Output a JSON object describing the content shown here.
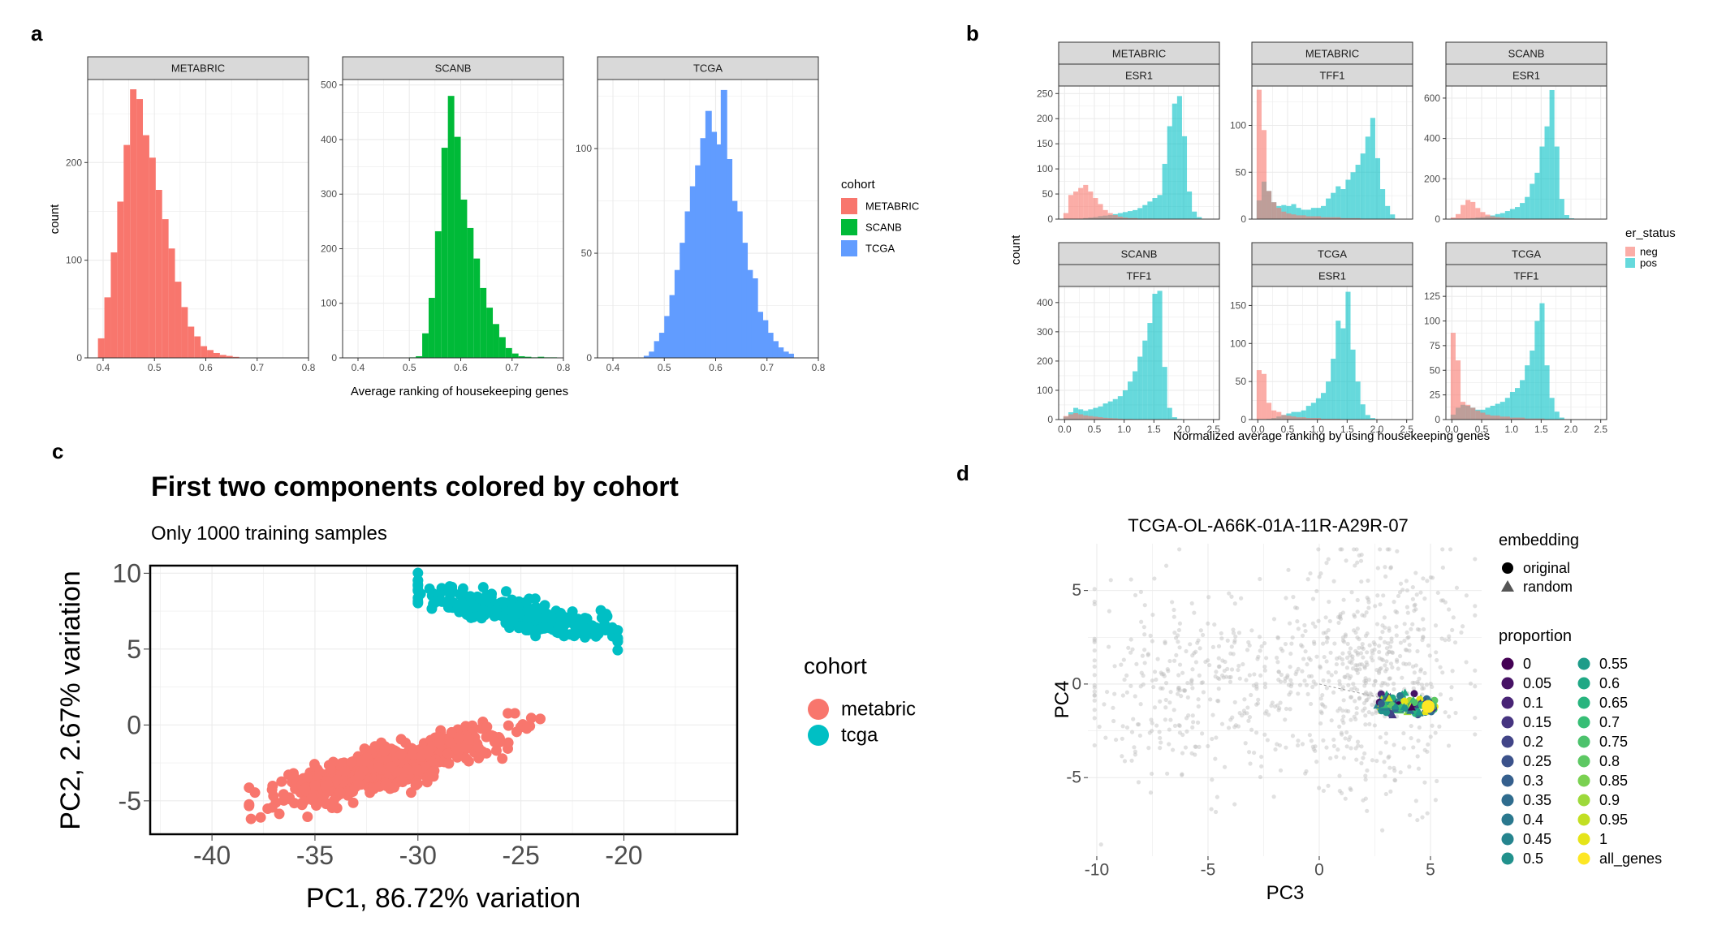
{
  "panel_labels": {
    "a": "a",
    "b": "b",
    "c": "c",
    "d": "d"
  },
  "chart_data": [
    {
      "id": "a",
      "type": "bar",
      "kind": "faceted histogram",
      "xlabel": "Average ranking of housekeeping genes",
      "ylabel": "count",
      "legend": {
        "title": "cohort",
        "position": "right",
        "entries": [
          "METABRIC",
          "SCANB",
          "TCGA"
        ]
      },
      "colors": {
        "METABRIC": "#F8766D",
        "SCANB": "#00BA38",
        "TCGA": "#619CFF"
      },
      "bin_width": 0.0125,
      "xlim": [
        0.37,
        0.8
      ],
      "xticks": [
        0.4,
        0.5,
        0.6,
        0.7,
        0.8
      ],
      "grid": true,
      "facets": [
        {
          "strip": "METABRIC",
          "cohort": "METABRIC",
          "ylim": [
            0,
            285
          ],
          "yticks": [
            0,
            100,
            200
          ],
          "bin_starts": [
            0.39,
            0.4025,
            0.415,
            0.4275,
            0.44,
            0.4525,
            0.465,
            0.4775,
            0.49,
            0.5025,
            0.515,
            0.5275,
            0.54,
            0.5525,
            0.565,
            0.5775,
            0.59,
            0.6025,
            0.615,
            0.6275,
            0.64,
            0.6525
          ],
          "counts": [
            20,
            62,
            108,
            160,
            218,
            275,
            265,
            228,
            205,
            172,
            142,
            112,
            78,
            52,
            32,
            22,
            12,
            8,
            5,
            3,
            2,
            1
          ]
        },
        {
          "strip": "SCANB",
          "cohort": "SCANB",
          "ylim": [
            0,
            510
          ],
          "yticks": [
            0,
            100,
            200,
            300,
            400,
            500
          ],
          "bin_starts": [
            0.5,
            0.5125,
            0.525,
            0.5375,
            0.55,
            0.5625,
            0.575,
            0.5875,
            0.6,
            0.6125,
            0.625,
            0.6375,
            0.65,
            0.6625,
            0.675,
            0.6875,
            0.7,
            0.7125,
            0.725,
            0.7375,
            0.75,
            0.7625,
            0.775
          ],
          "counts": [
            1,
            3,
            45,
            110,
            232,
            385,
            480,
            405,
            290,
            238,
            182,
            128,
            92,
            62,
            38,
            18,
            8,
            3,
            2,
            1,
            2,
            1,
            1
          ]
        },
        {
          "strip": "TCGA",
          "cohort": "TCGA",
          "ylim": [
            0,
            133
          ],
          "yticks": [
            0,
            50,
            100
          ],
          "bin_starts": [
            0.46,
            0.47,
            0.48,
            0.49,
            0.5,
            0.51,
            0.52,
            0.53,
            0.54,
            0.55,
            0.56,
            0.57,
            0.58,
            0.59,
            0.6,
            0.61,
            0.62,
            0.63,
            0.64,
            0.65,
            0.66,
            0.67,
            0.68,
            0.69,
            0.7,
            0.71,
            0.72,
            0.73,
            0.74
          ],
          "counts": [
            1,
            3,
            8,
            12,
            20,
            30,
            42,
            55,
            70,
            82,
            92,
            105,
            118,
            108,
            102,
            128,
            95,
            75,
            70,
            55,
            42,
            38,
            22,
            18,
            12,
            8,
            5,
            3,
            2
          ]
        }
      ]
    },
    {
      "id": "b",
      "type": "bar",
      "kind": "faceted overlapping histogram",
      "xlabel": "Normalized average ranking by using housekeeping genes",
      "ylabel": "count",
      "legend": {
        "title": "er_status",
        "position": "right",
        "entries": [
          "neg",
          "pos"
        ]
      },
      "colors": {
        "neg": "#F8766D",
        "pos": "#00BFC4"
      },
      "bin_width": 0.083,
      "xlim": [
        -0.1,
        2.6
      ],
      "xticks": [
        0,
        0.5,
        1,
        1.5,
        2,
        2.5
      ],
      "xtick_labels": [
        "0.0",
        "0.5",
        "1.0",
        "1.5",
        "2.0",
        "2.5"
      ],
      "grid": true,
      "facets": [
        {
          "strip1": "METABRIC",
          "strip2": "ESR1",
          "ylim": [
            0,
            265
          ],
          "yticks": [
            0,
            50,
            100,
            150,
            200,
            250
          ],
          "neg": [
            12,
            48,
            55,
            62,
            68,
            55,
            42,
            30,
            18,
            12,
            8,
            5,
            3,
            2,
            2,
            1,
            1,
            1,
            0,
            0,
            0,
            0,
            0,
            0,
            0,
            0,
            0,
            0
          ],
          "pos": [
            0,
            0,
            0,
            0,
            2,
            3,
            4,
            6,
            7,
            8,
            10,
            12,
            14,
            16,
            18,
            22,
            28,
            35,
            42,
            48,
            110,
            185,
            230,
            245,
            165,
            55,
            15,
            4
          ]
        },
        {
          "strip1": "METABRIC",
          "strip2": "TFF1",
          "ylim": [
            0,
            142
          ],
          "yticks": [
            0,
            50,
            100
          ],
          "neg": [
            138,
            95,
            30,
            18,
            12,
            8,
            6,
            5,
            4,
            4,
            3,
            3,
            3,
            2,
            2,
            2,
            2,
            1,
            1,
            1,
            1,
            0,
            0,
            0,
            0,
            0,
            0,
            0
          ],
          "pos": [
            20,
            40,
            30,
            18,
            14,
            15,
            14,
            16,
            12,
            10,
            10,
            12,
            12,
            14,
            22,
            28,
            35,
            32,
            42,
            50,
            58,
            70,
            88,
            108,
            65,
            32,
            14,
            5
          ]
        },
        {
          "strip1": "SCANB",
          "strip2": "ESR1",
          "ylim": [
            0,
            660
          ],
          "yticks": [
            0,
            200,
            400,
            600
          ],
          "neg": [
            8,
            25,
            70,
            95,
            85,
            55,
            35,
            22,
            14,
            10,
            7,
            5,
            4,
            3,
            2,
            2,
            1,
            1,
            0,
            0,
            0,
            0,
            0,
            0,
            0,
            0,
            0,
            0
          ],
          "pos": [
            0,
            0,
            2,
            3,
            5,
            8,
            10,
            14,
            18,
            25,
            30,
            40,
            50,
            60,
            80,
            110,
            175,
            230,
            360,
            460,
            640,
            360,
            100,
            20,
            4,
            0,
            0,
            0
          ]
        },
        {
          "strip1": "SCANB",
          "strip2": "TFF1",
          "ylim": [
            0,
            455
          ],
          "yticks": [
            0,
            100,
            200,
            300,
            400
          ],
          "neg": [
            12,
            18,
            22,
            18,
            14,
            12,
            10,
            8,
            6,
            5,
            4,
            3,
            2,
            2,
            1,
            1,
            1,
            0,
            0,
            0,
            0,
            0,
            0,
            0,
            0,
            0,
            0,
            0
          ],
          "pos": [
            10,
            25,
            40,
            35,
            30,
            35,
            40,
            45,
            55,
            62,
            70,
            80,
            100,
            130,
            165,
            215,
            270,
            330,
            430,
            440,
            180,
            40,
            8,
            2,
            0,
            0,
            0,
            0
          ]
        },
        {
          "strip1": "TCGA",
          "strip2": "ESR1",
          "ylim": [
            0,
            175
          ],
          "yticks": [
            0,
            50,
            100,
            150
          ],
          "neg": [
            65,
            60,
            22,
            12,
            10,
            6,
            5,
            4,
            3,
            3,
            2,
            2,
            2,
            1,
            1,
            1,
            1,
            0,
            0,
            0,
            0,
            0,
            0,
            0,
            0,
            0,
            0,
            0
          ],
          "pos": [
            0,
            0,
            1,
            2,
            4,
            6,
            8,
            10,
            10,
            12,
            18,
            22,
            28,
            35,
            50,
            80,
            130,
            120,
            168,
            92,
            50,
            20,
            6,
            2,
            0,
            0,
            0,
            0
          ]
        },
        {
          "strip1": "TCGA",
          "strip2": "TFF1",
          "ylim": [
            0,
            135
          ],
          "yticks": [
            0,
            25,
            50,
            75,
            100,
            125
          ],
          "neg": [
            88,
            60,
            18,
            15,
            12,
            9,
            7,
            5,
            4,
            4,
            3,
            3,
            2,
            2,
            2,
            1,
            1,
            1,
            1,
            0,
            0,
            0,
            0,
            0,
            0,
            0,
            0,
            0
          ],
          "pos": [
            5,
            12,
            15,
            14,
            12,
            10,
            10,
            12,
            14,
            16,
            18,
            22,
            28,
            32,
            40,
            55,
            70,
            100,
            118,
            55,
            22,
            8,
            2,
            0,
            0,
            0,
            0,
            0
          ]
        }
      ]
    },
    {
      "id": "c",
      "type": "scatter",
      "title": "First two components colored by cohort",
      "subtitle": "Only 1000 training samples",
      "xlabel": "PC1, 86.72% variation",
      "ylabel": "PC2, 2.67% variation",
      "xlim": [
        -43,
        -14.5
      ],
      "ylim": [
        -7.2,
        10.5
      ],
      "xticks": [
        -40,
        -35,
        -30,
        -25,
        -20
      ],
      "yticks": [
        -5,
        0,
        5,
        10
      ],
      "grid": true,
      "legend": {
        "title": "cohort",
        "position": "right",
        "entries": [
          "metabric",
          "tcga"
        ]
      },
      "colors": {
        "metabric": "#F8766D",
        "tcga": "#00BFC4"
      },
      "series": [
        {
          "name": "metabric",
          "x_range": [
            -38.2,
            -23.8
          ],
          "center_line": {
            "x0": -36,
            "y0": -4.6,
            "x1": -27,
            "y1": -1.0
          },
          "n": 700
        },
        {
          "name": "tcga",
          "x_range": [
            -30,
            -20.3
          ],
          "center_line": {
            "x0": -29.5,
            "y0": 8.7,
            "x1": -21,
            "y1": 6.0
          },
          "n": 300
        }
      ]
    },
    {
      "id": "d",
      "type": "scatter",
      "title": "TCGA-OL-A66K-01A-11R-A29R-07",
      "xlabel": "PC3",
      "ylabel": "PC4",
      "xlim": [
        -10.4,
        7.3
      ],
      "ylim": [
        -9.2,
        7.5
      ],
      "xticks": [
        -10,
        -5,
        0,
        5
      ],
      "yticks": [
        -5,
        0,
        5
      ],
      "grid": true,
      "background_points": {
        "color": "#bdbdbd",
        "n": 900
      },
      "highlight": {
        "x": 4.9,
        "y": -1.2,
        "label": "all_genes"
      },
      "legends": [
        {
          "title": "embedding",
          "entries": [
            {
              "label": "original",
              "shape": "circle"
            },
            {
              "label": "random",
              "shape": "triangle"
            }
          ]
        },
        {
          "title": "proportion",
          "entries": [
            "0",
            "0.05",
            "0.1",
            "0.15",
            "0.2",
            "0.25",
            "0.3",
            "0.35",
            "0.4",
            "0.45",
            "0.5",
            "0.55",
            "0.6",
            "0.65",
            "0.7",
            "0.75",
            "0.8",
            "0.85",
            "0.9",
            "0.95",
            "1",
            "all_genes"
          ],
          "colors": [
            "#440154",
            "#471365",
            "#482475",
            "#463480",
            "#414487",
            "#3B528B",
            "#355F8D",
            "#2F6C8E",
            "#2A788E",
            "#25848E",
            "#21918C",
            "#1E9C89",
            "#20A885",
            "#28B47E",
            "#37BE75",
            "#4CC26C",
            "#5DC863",
            "#7AD151",
            "#9DD93B",
            "#C2DF23",
            "#E5E419",
            "#FDE725"
          ]
        }
      ]
    }
  ]
}
